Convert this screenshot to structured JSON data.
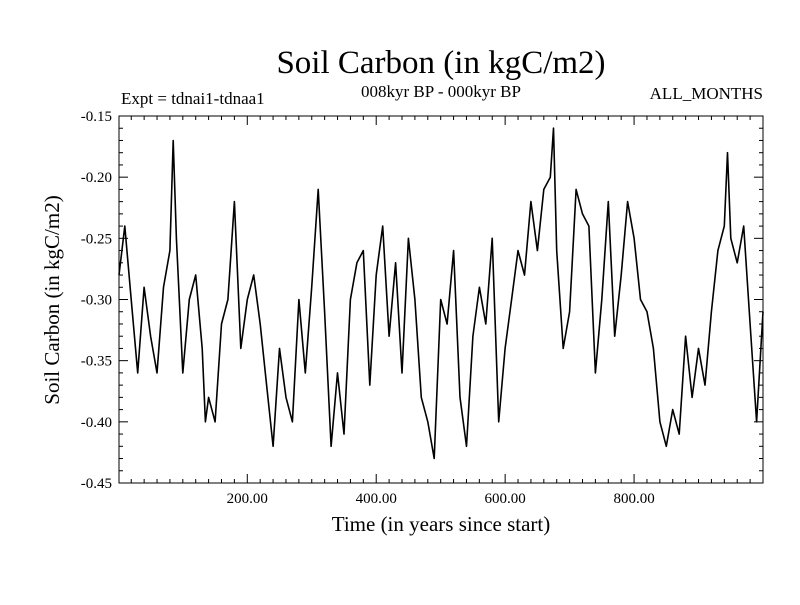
{
  "chart_data": {
    "type": "line",
    "title": "Soil Carbon (in kgC/m2)",
    "subtitle_left": "Expt = tdnai1-tdnaa1",
    "subtitle_center": "008kyr BP - 000kyr BP",
    "subtitle_right": "ALL_MONTHS",
    "xlabel": "Time (in years since start)",
    "ylabel": "Soil Carbon (in kgC/m2)",
    "xlim": [
      1,
      1000
    ],
    "ylim": [
      -0.45,
      -0.15
    ],
    "x_ticks": [
      200,
      400,
      600,
      800
    ],
    "x_tick_labels": [
      "200.00",
      "400.00",
      "600.00",
      "800.00"
    ],
    "y_ticks": [
      -0.15,
      -0.2,
      -0.25,
      -0.3,
      -0.35,
      -0.4,
      -0.45
    ],
    "y_tick_labels": [
      "-0.15",
      "-0.20",
      "-0.25",
      "-0.30",
      "-0.35",
      "-0.40",
      "-0.45"
    ],
    "series": [
      {
        "name": "Soil Carbon",
        "x": [
          1,
          10,
          20,
          30,
          40,
          50,
          60,
          70,
          80,
          85,
          90,
          100,
          110,
          120,
          130,
          135,
          140,
          150,
          160,
          170,
          180,
          190,
          200,
          210,
          220,
          230,
          240,
          250,
          260,
          270,
          280,
          290,
          300,
          310,
          320,
          330,
          340,
          350,
          360,
          370,
          380,
          390,
          400,
          410,
          420,
          430,
          440,
          450,
          460,
          470,
          480,
          490,
          500,
          510,
          520,
          530,
          540,
          550,
          560,
          570,
          580,
          590,
          600,
          610,
          620,
          630,
          640,
          650,
          660,
          670,
          675,
          680,
          690,
          700,
          710,
          720,
          730,
          740,
          750,
          760,
          770,
          780,
          790,
          800,
          810,
          820,
          830,
          840,
          850,
          860,
          870,
          880,
          890,
          900,
          910,
          920,
          930,
          940,
          945,
          950,
          960,
          970,
          980,
          990,
          1000
        ],
        "y": [
          -0.28,
          -0.24,
          -0.3,
          -0.36,
          -0.29,
          -0.33,
          -0.36,
          -0.29,
          -0.26,
          -0.17,
          -0.25,
          -0.36,
          -0.3,
          -0.28,
          -0.34,
          -0.4,
          -0.38,
          -0.4,
          -0.32,
          -0.3,
          -0.22,
          -0.34,
          -0.3,
          -0.28,
          -0.32,
          -0.37,
          -0.42,
          -0.34,
          -0.38,
          -0.4,
          -0.3,
          -0.36,
          -0.29,
          -0.21,
          -0.31,
          -0.42,
          -0.36,
          -0.41,
          -0.3,
          -0.27,
          -0.26,
          -0.37,
          -0.28,
          -0.24,
          -0.33,
          -0.27,
          -0.36,
          -0.25,
          -0.3,
          -0.38,
          -0.4,
          -0.43,
          -0.3,
          -0.32,
          -0.26,
          -0.38,
          -0.42,
          -0.33,
          -0.29,
          -0.32,
          -0.25,
          -0.4,
          -0.34,
          -0.3,
          -0.26,
          -0.28,
          -0.22,
          -0.26,
          -0.21,
          -0.2,
          -0.16,
          -0.26,
          -0.34,
          -0.31,
          -0.21,
          -0.23,
          -0.24,
          -0.36,
          -0.3,
          -0.22,
          -0.33,
          -0.28,
          -0.22,
          -0.25,
          -0.3,
          -0.31,
          -0.34,
          -0.4,
          -0.42,
          -0.39,
          -0.41,
          -0.33,
          -0.38,
          -0.34,
          -0.37,
          -0.31,
          -0.26,
          -0.24,
          -0.18,
          -0.25,
          -0.27,
          -0.24,
          -0.32,
          -0.4,
          -0.31
        ]
      }
    ]
  }
}
